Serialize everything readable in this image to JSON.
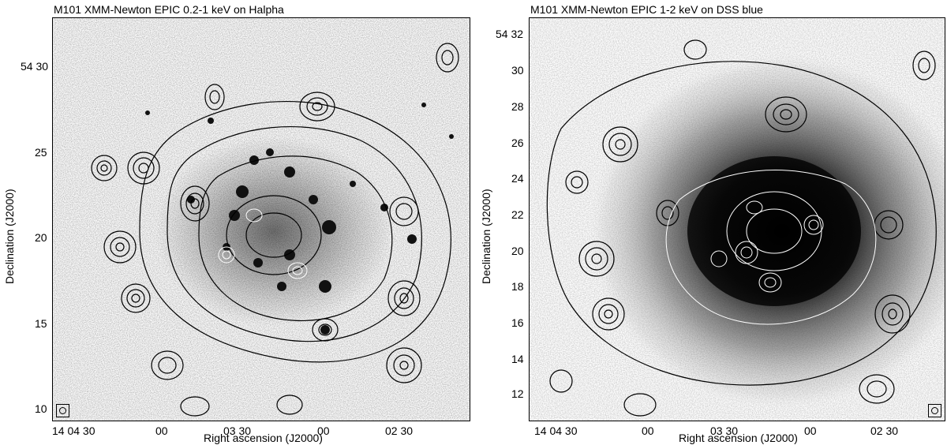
{
  "panels": [
    {
      "title": "M101 XMM-Newton EPIC 0.2-1 keV on Halpha",
      "ylabel": "Declination (J2000)",
      "xlabel": "Right ascension (J2000)",
      "yticks": [
        "54 30",
        "25",
        "20",
        "15",
        "10"
      ],
      "xticks": [
        "14 04 30",
        "00",
        "03 30",
        "00",
        "02 30"
      ]
    },
    {
      "title": "M101 XMM-Newton EPIC 1-2 keV on DSS blue",
      "ylabel": "Declination (J2000)",
      "xlabel": "Right ascension (J2000)",
      "yticks": [
        "54 32",
        "30",
        "28",
        "26",
        "24",
        "22",
        "20",
        "18",
        "16",
        "14",
        "12"
      ],
      "xticks": [
        "14 04 30",
        "00",
        "03 30",
        "00",
        "02 30"
      ]
    }
  ],
  "colors": {
    "contour": "#000000",
    "inner_contour": "#ffffff",
    "background": "#ffffff"
  },
  "icons": {
    "beam": "beam-circle-icon"
  }
}
